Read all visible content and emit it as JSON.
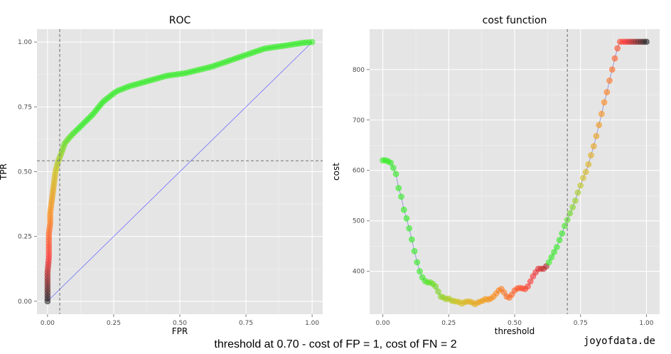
{
  "caption": "threshold at 0.70 - cost of FP = 1, cost of FN = 2",
  "brand": "joyofdata.de",
  "colors": {
    "panel_bg": "#e5e5e5",
    "grid_major": "#ffffff",
    "grid_minor": "#f2f2f2",
    "reference_line": "#6f6fff",
    "curve_line": "#8888dd",
    "guide_line": "#7f7f7f",
    "gradient_stops": [
      "#222222",
      "#ff3333",
      "#ff8c1a",
      "#d4c21e",
      "#33ee22",
      "#33ee22"
    ]
  },
  "chart_data": [
    {
      "id": "roc",
      "type": "scatter",
      "title": "ROC",
      "xlabel": "FPR",
      "ylabel": "TPR",
      "xlim": [
        -0.04,
        1.04
      ],
      "ylim": [
        -0.05,
        1.05
      ],
      "xticks": [
        0.0,
        0.25,
        0.5,
        0.75,
        1.0
      ],
      "yticks": [
        0.0,
        0.25,
        0.5,
        0.75,
        1.0
      ],
      "xtick_labels": [
        "0.00",
        "0.25",
        "0.50",
        "0.75",
        "1.00"
      ],
      "ytick_labels": [
        "0.00",
        "0.25",
        "0.50",
        "0.75",
        "1.00"
      ],
      "vline": 0.046,
      "hline": 0.542,
      "diagonal": [
        [
          0,
          0
        ],
        [
          1,
          1
        ]
      ],
      "curve": [
        [
          0,
          0
        ],
        [
          0,
          0.01
        ],
        [
          0,
          0.05
        ],
        [
          0,
          0.11
        ],
        [
          0.005,
          0.17
        ],
        [
          0.005,
          0.22
        ],
        [
          0.005,
          0.26
        ],
        [
          0.01,
          0.3
        ],
        [
          0.01,
          0.34
        ],
        [
          0.015,
          0.38
        ],
        [
          0.02,
          0.42
        ],
        [
          0.025,
          0.46
        ],
        [
          0.03,
          0.5
        ],
        [
          0.04,
          0.54
        ],
        [
          0.05,
          0.565
        ],
        [
          0.065,
          0.61
        ],
        [
          0.09,
          0.64
        ],
        [
          0.13,
          0.68
        ],
        [
          0.17,
          0.72
        ],
        [
          0.21,
          0.77
        ],
        [
          0.26,
          0.81
        ],
        [
          0.31,
          0.83
        ],
        [
          0.38,
          0.85
        ],
        [
          0.45,
          0.87
        ],
        [
          0.52,
          0.88
        ],
        [
          0.62,
          0.905
        ],
        [
          0.72,
          0.94
        ],
        [
          0.82,
          0.975
        ],
        [
          0.92,
          0.99
        ],
        [
          0.97,
          0.998
        ],
        [
          1.0,
          1.0
        ]
      ],
      "n_points": 150
    },
    {
      "id": "cost",
      "type": "scatter",
      "title": "cost function",
      "xlabel": "threshold",
      "ylabel": "cost",
      "xlim": [
        -0.05,
        1.05
      ],
      "ylim": [
        315,
        880
      ],
      "xticks": [
        0.0,
        0.25,
        0.5,
        0.75,
        1.0
      ],
      "yticks": [
        400,
        500,
        600,
        700,
        800
      ],
      "xtick_labels": [
        "0.00",
        "0.25",
        "0.50",
        "0.75",
        "1.00"
      ],
      "ytick_labels": [
        "400",
        "500",
        "600",
        "700",
        "800"
      ],
      "vline": 0.7,
      "x": [
        0.0,
        0.01,
        0.02,
        0.03,
        0.04,
        0.05,
        0.06,
        0.07,
        0.08,
        0.09,
        0.1,
        0.11,
        0.12,
        0.13,
        0.14,
        0.15,
        0.16,
        0.17,
        0.18,
        0.19,
        0.2,
        0.21,
        0.22,
        0.23,
        0.24,
        0.25,
        0.26,
        0.27,
        0.28,
        0.29,
        0.3,
        0.31,
        0.32,
        0.33,
        0.34,
        0.35,
        0.36,
        0.37,
        0.38,
        0.39,
        0.4,
        0.41,
        0.42,
        0.43,
        0.44,
        0.45,
        0.46,
        0.47,
        0.48,
        0.49,
        0.5,
        0.51,
        0.52,
        0.53,
        0.54,
        0.55,
        0.56,
        0.57,
        0.58,
        0.59,
        0.6,
        0.61,
        0.62,
        0.63,
        0.64,
        0.65,
        0.66,
        0.67,
        0.68,
        0.69,
        0.7,
        0.71,
        0.72,
        0.73,
        0.74,
        0.75,
        0.76,
        0.77,
        0.78,
        0.79,
        0.8,
        0.81,
        0.82,
        0.83,
        0.84,
        0.85,
        0.86,
        0.87,
        0.88,
        0.89,
        0.9,
        0.91,
        0.92,
        0.93,
        0.94,
        0.95,
        0.96,
        0.97,
        0.98,
        0.99,
        1.0
      ],
      "y": [
        620,
        620,
        618,
        615,
        605,
        593,
        565,
        548,
        522,
        505,
        485,
        463,
        440,
        418,
        400,
        388,
        381,
        378,
        378,
        375,
        370,
        360,
        350,
        348,
        345,
        346,
        342,
        341,
        340,
        339,
        336,
        339,
        340,
        340,
        338,
        335,
        338,
        340,
        342,
        345,
        344,
        346,
        350,
        356,
        362,
        365,
        358,
        350,
        348,
        354,
        362,
        366,
        367,
        366,
        365,
        370,
        380,
        390,
        398,
        405,
        405,
        405,
        410,
        418,
        428,
        438,
        448,
        462,
        475,
        490,
        502,
        515,
        527,
        540,
        556,
        570,
        585,
        597,
        612,
        630,
        648,
        668,
        690,
        712,
        735,
        755,
        778,
        800,
        822,
        842,
        855,
        855,
        855,
        855,
        855,
        855,
        855,
        855,
        855,
        855,
        855
      ]
    }
  ]
}
